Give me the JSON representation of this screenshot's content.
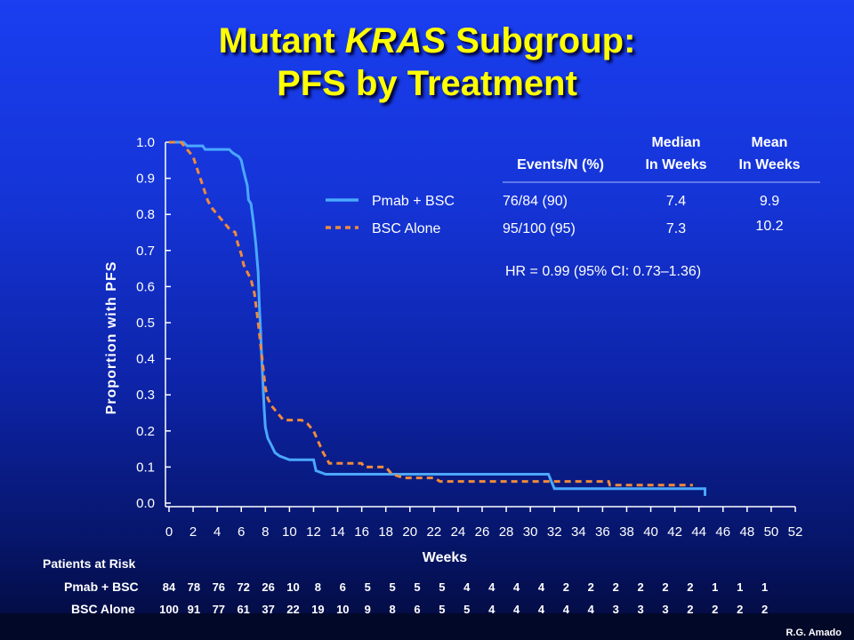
{
  "title_line1_pre": "Mutant ",
  "title_line1_em": "KRAS",
  "title_line1_post": " Subgroup:",
  "title_line2": "PFS by Treatment",
  "credit": "R.G. Amado",
  "colors": {
    "pmab": "#4aa8ff",
    "bsc": "#f08a3c",
    "title": "#ffff00"
  },
  "table": {
    "col_events": "Events/N (%)",
    "col_median_1": "Median",
    "col_median_2": "In Weeks",
    "col_mean_1": "Mean",
    "col_mean_2": "In Weeks",
    "rows": [
      {
        "name": "Pmab + BSC",
        "events": "76/84 (90)",
        "median": "7.4",
        "mean": "9.9",
        "style": "solid"
      },
      {
        "name": "BSC Alone",
        "events": "95/100 (95)",
        "median": "7.3",
        "mean": "10.2",
        "style": "dashed"
      }
    ],
    "hr": "HR = 0.99 (95% CI: 0.73–1.36)"
  },
  "risk": {
    "title": "Patients at Risk",
    "rows": [
      {
        "label": "Pmab + BSC",
        "values": [
          "84",
          "78",
          "76",
          "72",
          "26",
          "10",
          "8",
          "6",
          "5",
          "5",
          "5",
          "5",
          "4",
          "4",
          "4",
          "4",
          "2",
          "2",
          "2",
          "2",
          "2",
          "2",
          "1",
          "1",
          "1"
        ]
      },
      {
        "label": "BSC Alone",
        "values": [
          "100",
          "91",
          "77",
          "61",
          "37",
          "22",
          "19",
          "10",
          "9",
          "8",
          "6",
          "5",
          "5",
          "4",
          "4",
          "4",
          "4",
          "4",
          "3",
          "3",
          "3",
          "2",
          "2",
          "2",
          "2"
        ]
      }
    ]
  },
  "chart_data": {
    "type": "line",
    "xlabel": "Weeks",
    "ylabel": "Proportion with PFS",
    "xlim": [
      0,
      52
    ],
    "ylim": [
      0,
      1
    ],
    "x_ticks": [
      "0",
      "2",
      "4",
      "6",
      "8",
      "10",
      "12",
      "14",
      "16",
      "18",
      "20",
      "22",
      "24",
      "26",
      "28",
      "30",
      "32",
      "34",
      "36",
      "38",
      "40",
      "42",
      "44",
      "46",
      "48",
      "50",
      "52"
    ],
    "y_ticks": [
      "0.0",
      "0.1",
      "0.2",
      "0.3",
      "0.4",
      "0.5",
      "0.6",
      "0.7",
      "0.8",
      "0.9",
      "1.0"
    ],
    "series": [
      {
        "name": "Pmab + BSC",
        "style": "solid",
        "points": [
          [
            0,
            1.0
          ],
          [
            1.2,
            1.0
          ],
          [
            1.5,
            0.99
          ],
          [
            2.8,
            0.99
          ],
          [
            3.0,
            0.98
          ],
          [
            5.0,
            0.98
          ],
          [
            5.3,
            0.97
          ],
          [
            5.8,
            0.96
          ],
          [
            6.0,
            0.95
          ],
          [
            6.2,
            0.92
          ],
          [
            6.5,
            0.88
          ],
          [
            6.6,
            0.84
          ],
          [
            6.8,
            0.83
          ],
          [
            7.0,
            0.78
          ],
          [
            7.2,
            0.72
          ],
          [
            7.4,
            0.64
          ],
          [
            7.5,
            0.55
          ],
          [
            7.6,
            0.48
          ],
          [
            7.7,
            0.4
          ],
          [
            7.8,
            0.33
          ],
          [
            7.9,
            0.26
          ],
          [
            8.0,
            0.21
          ],
          [
            8.2,
            0.18
          ],
          [
            8.5,
            0.16
          ],
          [
            8.8,
            0.14
          ],
          [
            9.2,
            0.13
          ],
          [
            10.0,
            0.12
          ],
          [
            12.0,
            0.12
          ],
          [
            12.2,
            0.09
          ],
          [
            13.0,
            0.08
          ],
          [
            21.0,
            0.08
          ],
          [
            21.5,
            0.08
          ],
          [
            22.0,
            0.08
          ],
          [
            22.6,
            0.08
          ],
          [
            31.5,
            0.08
          ],
          [
            32.0,
            0.04
          ],
          [
            44.5,
            0.04
          ],
          [
            44.5,
            0.02
          ]
        ]
      },
      {
        "name": "BSC Alone",
        "style": "dashed",
        "points": [
          [
            0,
            1.0
          ],
          [
            1.0,
            1.0
          ],
          [
            1.5,
            0.98
          ],
          [
            2.0,
            0.96
          ],
          [
            2.3,
            0.93
          ],
          [
            2.6,
            0.9
          ],
          [
            2.9,
            0.87
          ],
          [
            3.2,
            0.84
          ],
          [
            3.5,
            0.82
          ],
          [
            4.0,
            0.8
          ],
          [
            4.5,
            0.78
          ],
          [
            5.0,
            0.76
          ],
          [
            5.5,
            0.75
          ],
          [
            5.7,
            0.72
          ],
          [
            6.0,
            0.69
          ],
          [
            6.2,
            0.66
          ],
          [
            6.5,
            0.64
          ],
          [
            6.8,
            0.62
          ],
          [
            7.1,
            0.58
          ],
          [
            7.4,
            0.5
          ],
          [
            7.6,
            0.44
          ],
          [
            7.8,
            0.38
          ],
          [
            8.0,
            0.32
          ],
          [
            8.2,
            0.29
          ],
          [
            8.5,
            0.27
          ],
          [
            9.0,
            0.25
          ],
          [
            9.5,
            0.23
          ],
          [
            11.0,
            0.23
          ],
          [
            11.5,
            0.22
          ],
          [
            12.0,
            0.2
          ],
          [
            12.4,
            0.17
          ],
          [
            12.8,
            0.14
          ],
          [
            13.3,
            0.11
          ],
          [
            16.0,
            0.11
          ],
          [
            16.2,
            0.1
          ],
          [
            18.0,
            0.1
          ],
          [
            18.5,
            0.08
          ],
          [
            19.5,
            0.07
          ],
          [
            22.0,
            0.07
          ],
          [
            22.5,
            0.06
          ],
          [
            36.5,
            0.06
          ],
          [
            36.6,
            0.05
          ],
          [
            43.5,
            0.05
          ]
        ]
      }
    ]
  }
}
